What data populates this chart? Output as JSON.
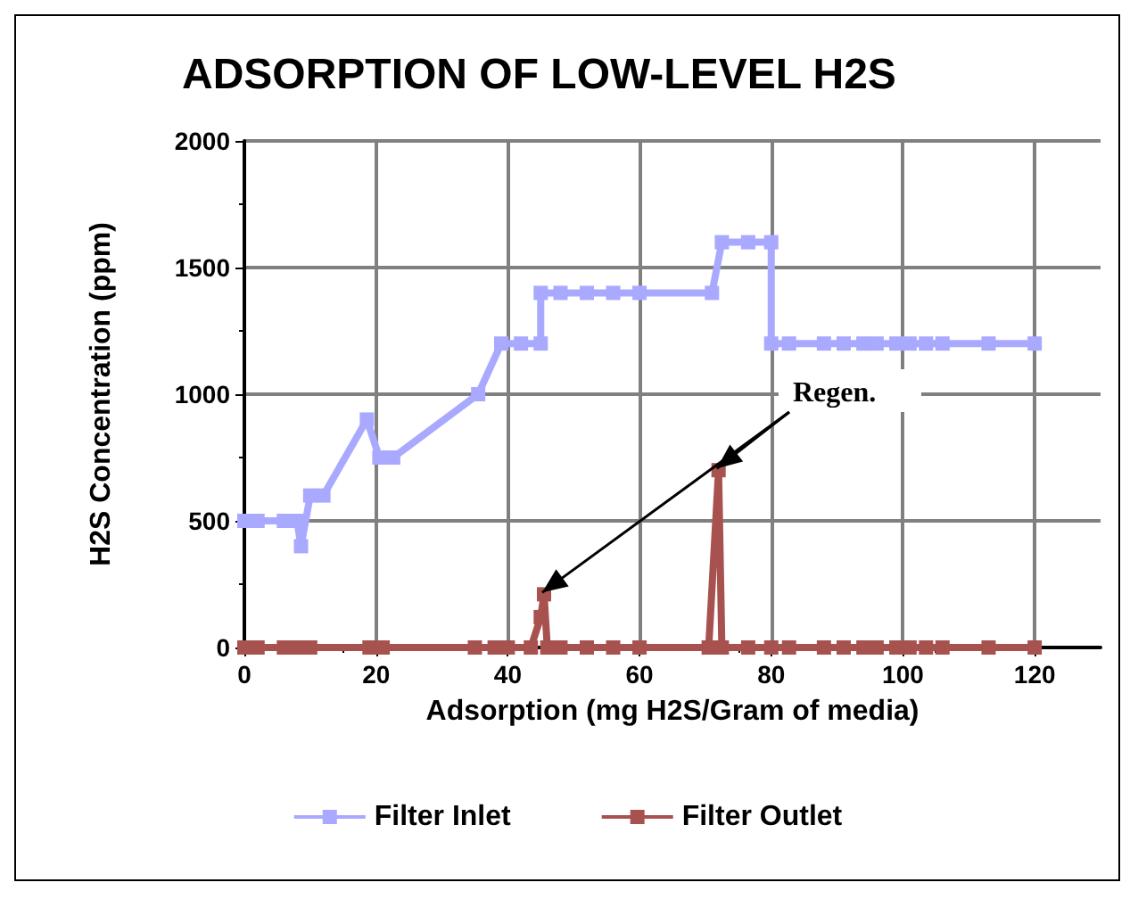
{
  "chart_data": {
    "type": "line",
    "title": "ADSORPTION OF LOW-LEVEL H2S",
    "xlabel": "Adsorption (mg H2S/Gram of media)",
    "ylabel": "H2S Concentration (ppm)",
    "xlim": [
      0,
      130
    ],
    "xticks": [
      0,
      20,
      40,
      60,
      80,
      100,
      120
    ],
    "ylim": [
      0,
      2000
    ],
    "yticks": [
      0,
      500,
      1000,
      1500,
      2000
    ],
    "grid": true,
    "legend": "bottom",
    "marker": "square",
    "line_style": "solid",
    "annotations": [
      {
        "text": "Regen.",
        "x": 72,
        "y": 700
      }
    ],
    "series": [
      {
        "name": "Filter Inlet",
        "color": "#a9a9ff",
        "x": [
          0,
          2,
          6,
          8,
          8.6,
          10,
          12,
          18.6,
          20.5,
          22.6,
          35.5,
          39,
          42,
          45,
          45,
          48,
          52,
          56,
          60,
          71,
          72.5,
          76.5,
          80,
          80,
          82.7,
          88,
          91,
          94,
          96,
          99,
          101,
          103.5,
          106,
          113,
          120
        ],
        "values": [
          500,
          500,
          500,
          500,
          400,
          600,
          600,
          900,
          750,
          750,
          1000,
          1200,
          1200,
          1200,
          1400,
          1400,
          1400,
          1400,
          1400,
          1400,
          1600,
          1600,
          1600,
          1200,
          1200,
          1200,
          1200,
          1200,
          1200,
          1200,
          1200,
          1200,
          1200,
          1200,
          1200
        ]
      },
      {
        "name": "Filter Outlet",
        "color": "#a8524f",
        "x": [
          0,
          2,
          6,
          8,
          10,
          19,
          21,
          35,
          38,
          40,
          43.5,
          45,
          45.5,
          46,
          48,
          52,
          56,
          60,
          70.5,
          72,
          72.5,
          76.5,
          80,
          82.7,
          88,
          91,
          94,
          96,
          99,
          101,
          103.5,
          106,
          113,
          120
        ],
        "values": [
          0,
          0,
          0,
          0,
          0,
          0,
          0,
          0,
          0,
          0,
          0,
          120,
          210,
          0,
          0,
          0,
          0,
          0,
          0,
          700,
          0,
          0,
          0,
          0,
          0,
          0,
          0,
          0,
          0,
          0,
          0,
          0,
          0,
          0
        ]
      }
    ]
  }
}
